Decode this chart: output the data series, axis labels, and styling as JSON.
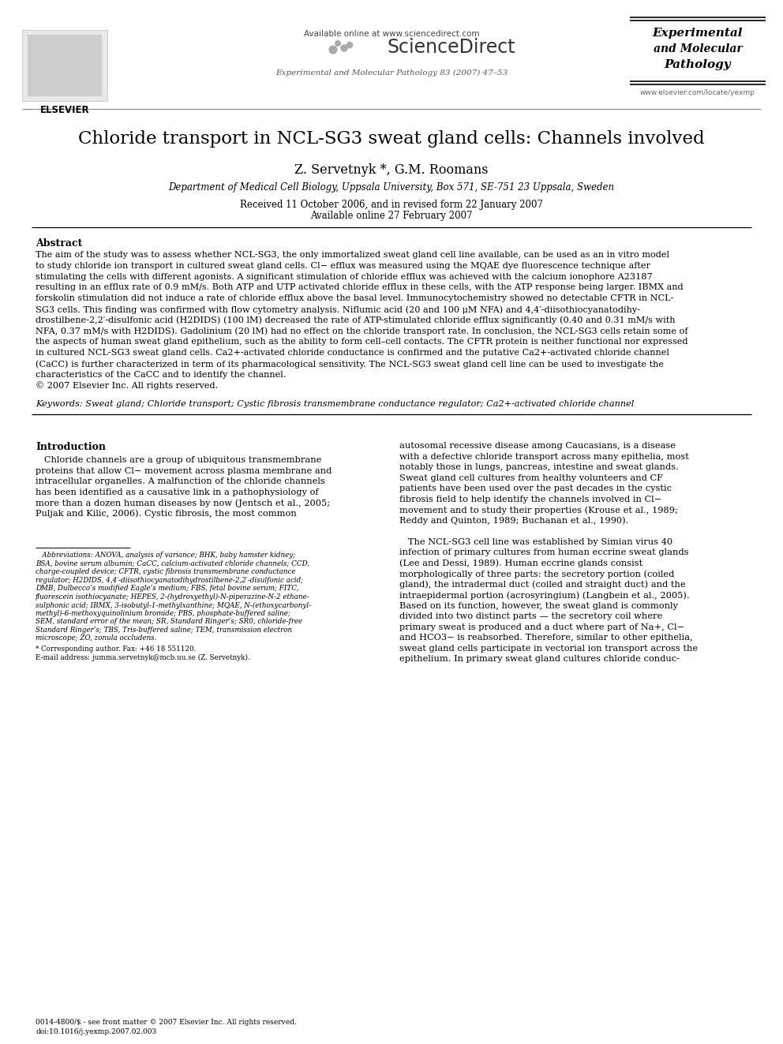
{
  "bg_color": "#ffffff",
  "title": "Chloride transport in NCL-SG3 sweat gland cells: Channels involved",
  "authors": "Z. Servetnyk *, G.M. Roomans",
  "affiliation": "Department of Medical Cell Biology, Uppsala University, Box 571, SE-751 23 Uppsala, Sweden",
  "received": "Received 11 October 2006, and in revised form 22 January 2007",
  "available": "Available online 27 February 2007",
  "journal_header": "Available online at www.sciencedirect.com",
  "journal_name": "ScienceDirect",
  "journal_ref": "Experimental and Molecular Pathology 83 (2007) 47–53",
  "journal_url": "www.elsevier.com/locate/yexmp",
  "abstract_title": "Abstract",
  "keywords_text": "Keywords: Sweat gland; Chloride transport; Cystic fibrosis transmembrane conductance regulator; Ca2+-activated chloride channel",
  "intro_title": "Introduction",
  "elsevier_text": "ELSEVIER",
  "exp_mol_path_lines": [
    "Experimental",
    "and Molecular",
    "Pathology"
  ],
  "abstract_lines": [
    "The aim of the study was to assess whether NCL-SG3, the only immortalized sweat gland cell line available, can be used as an in vitro model",
    "to study chloride ion transport in cultured sweat gland cells. Cl− efflux was measured using the MQAE dye fluorescence technique after",
    "stimulating the cells with different agonists. A significant stimulation of chloride efflux was achieved with the calcium ionophore A23187",
    "resulting in an efflux rate of 0.9 mM/s. Both ATP and UTP activated chloride efflux in these cells, with the ATP response being larger. IBMX and",
    "forskolin stimulation did not induce a rate of chloride efflux above the basal level. Immunocytochemistry showed no detectable CFTR in NCL-",
    "SG3 cells. This finding was confirmed with flow cytometry analysis. Niflumic acid (20 and 100 μM NFA) and 4,4′-diisothiocyanatodihy-",
    "drostilbene-2,2′-disulfonic acid (H2DIDS) (100 lM) decreased the rate of ATP-stimulated chloride efflux significantly (0.40 and 0.31 mM/s with",
    "NFA, 0.37 mM/s with H2DIDS). Gadolinium (20 lM) had no effect on the chloride transport rate. In conclusion, the NCL-SG3 cells retain some of",
    "the aspects of human sweat gland epithelium, such as the ability to form cell–cell contacts. The CFTR protein is neither functional nor expressed",
    "in cultured NCL-SG3 sweat gland cells. Ca2+-activated chloride conductance is confirmed and the putative Ca2+-activated chloride channel",
    "(CaCC) is further characterized in term of its pharmacological sensitivity. The NCL-SG3 sweat gland cell line can be used to investigate the",
    "characteristics of the CaCC and to identify the channel.",
    "© 2007 Elsevier Inc. All rights reserved."
  ],
  "left_intro_lines": [
    "   Chloride channels are a group of ubiquitous transmembrane",
    "proteins that allow Cl− movement across plasma membrane and",
    "intracellular organelles. A malfunction of the chloride channels",
    "has been identified as a causative link in a pathophysiology of",
    "more than a dozen human diseases by now (Jentsch et al., 2005;",
    "Puljak and Kilic, 2006). Cystic fibrosis, the most common"
  ],
  "right_intro_lines": [
    "autosomal recessive disease among Caucasians, is a disease",
    "with a defective chloride transport across many epithelia, most",
    "notably those in lungs, pancreas, intestine and sweat glands.",
    "Sweat gland cell cultures from healthy volunteers and CF",
    "patients have been used over the past decades in the cystic",
    "fibrosis field to help identify the channels involved in Cl−",
    "movement and to study their properties (Krouse et al., 1989;",
    "Reddy and Quinton, 1989; Buchanan et al., 1990).",
    "",
    "   The NCL-SG3 cell line was established by Simian virus 40",
    "infection of primary cultures from human eccrine sweat glands",
    "(Lee and Dessi, 1989). Human eccrine glands consist",
    "morphologically of three parts: the secretory portion (coiled",
    "gland), the intradermal duct (coiled and straight duct) and the",
    "intraepidermal portion (acrosyringium) (Langbein et al., 2005).",
    "Based on its function, however, the sweat gland is commonly",
    "divided into two distinct parts — the secretory coil where",
    "primary sweat is produced and a duct where part of Na+, Cl−",
    "and HCO3− is reabsorbed. Therefore, similar to other epithelia,",
    "sweat gland cells participate in vectorial ion transport across the",
    "epithelium. In primary sweat gland cultures chloride conduc-"
  ],
  "fn_lines": [
    "   Abbreviations: ANOVA, analysis of variance; BHK, baby hamster kidney;",
    "BSA, bovine serum albumin; CaCC, calcium-activated chloride channels; CCD,",
    "charge-coupled device; CFTR, cystic fibrosis transmembrane conductance",
    "regulator; H2DIDS, 4,4′-diisothiocyanatodihydrostilbene-2,2′-disulfonic acid;",
    "DMB, Dulbecco’s modified Eagle’s medium; FBS, fetal bovine serum; FITC,",
    "fluorescein isothiocyanate; HEPES, 2-(hydroxyethyl)-N-piperazine-N-2 ethane-",
    "sulphonic acid; IBMX, 3-isobutyl-1-methylxanthine; MQAE, N-(ethoxycarbonyl-",
    "methyl)-6-methoxyquinolinium bromide; PBS, phosphate-buffered saline;",
    "SEM, standard error of the mean; SR, Standard Ringer’s; SR0, chloride-free",
    "Standard Ringer’s; TBS, Tris-buffered saline; TEM, transmission electron",
    "microscope; ZO, zonula occludens."
  ],
  "fn2_lines": [
    "* Corresponding author. Fax: +46 18 551120.",
    "E-mail address: jumma.servetnyk@mcb.uu.se (Z. Servetnyk)."
  ],
  "footer_lines": [
    "0014-4800/$ - see front matter © 2007 Elsevier Inc. All rights reserved.",
    "doi:10.1016/j.yexmp.2007.02.003"
  ]
}
